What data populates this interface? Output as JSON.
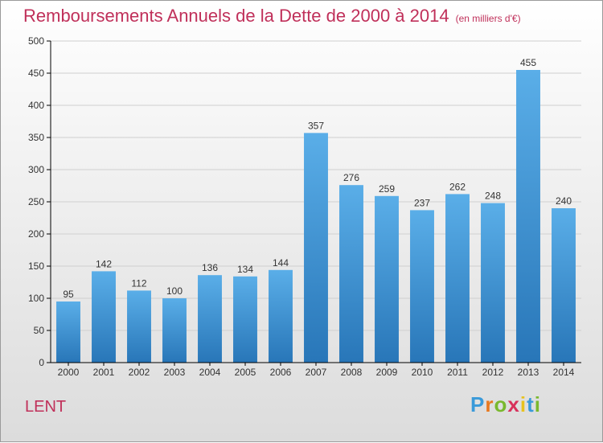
{
  "header": {
    "title": "Remboursements Annuels de la Dette de 2000 à 2014",
    "unit": "(en milliers d'€)"
  },
  "footer": {
    "commune": "LENT",
    "logo_letters": [
      "P",
      "r",
      "o",
      "x",
      "i",
      "t",
      "i"
    ],
    "logo_colors": [
      "#3a9ad9",
      "#e8781e",
      "#7ab82e",
      "#d8315b",
      "#e8c21e",
      "#3a9ad9",
      "#7ab82e"
    ]
  },
  "colors": {
    "title": "#c0305a",
    "bar_top": "#5aaee8",
    "bar_bottom": "#2876b8",
    "axis": "#000000",
    "grid": "#cfcfcf"
  },
  "chart_data": {
    "type": "bar",
    "categories": [
      "2000",
      "2001",
      "2002",
      "2003",
      "2004",
      "2005",
      "2006",
      "2007",
      "2008",
      "2009",
      "2010",
      "2011",
      "2012",
      "2013",
      "2014"
    ],
    "values": [
      95,
      142,
      112,
      100,
      136,
      134,
      144,
      357,
      276,
      259,
      237,
      262,
      248,
      455,
      240
    ],
    "yticks": [
      0,
      50,
      100,
      150,
      200,
      250,
      300,
      350,
      400,
      450,
      500
    ],
    "ylim": [
      0,
      500
    ],
    "grid": true,
    "title": "Remboursements Annuels de la Dette de 2000 à 2014",
    "xlabel": "",
    "ylabel": ""
  }
}
